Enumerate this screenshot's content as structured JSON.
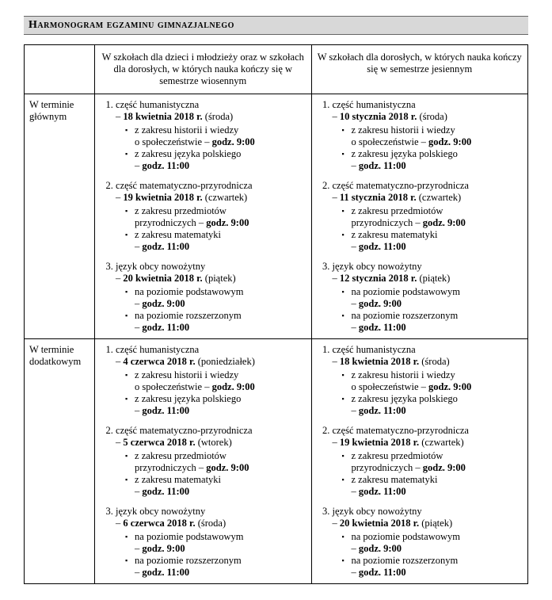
{
  "title": "Harmonogram egzaminu gimnazjalnego",
  "columns": {
    "a": "W szkołach dla dzieci i młodzieży oraz w szkołach dla dorosłych, w których nauka kończy się w semestrze wiosennym",
    "b": "W szkołach dla dorosłych, w których nauka kończy się w semestrze jesiennym"
  },
  "rows": [
    {
      "label": "W terminie głównym",
      "a": [
        {
          "title": "część humanistyczna",
          "date_pre": "– ",
          "date_bold": "18 kwietnia 2018 r.",
          "date_post": " (środa)",
          "bullets": [
            {
              "l1": "z zakresu historii i wiedzy",
              "l2_pre": "o społeczeństwie – ",
              "l2_bold": "godz. 9:00"
            },
            {
              "l1": "z zakresu języka polskiego",
              "l2_pre": "– ",
              "l2_bold": "godz. 11:00"
            }
          ]
        },
        {
          "title": "część matematyczno-przyrodnicza",
          "date_pre": "– ",
          "date_bold": "19 kwietnia 2018 r.",
          "date_post": " (czwartek)",
          "bullets": [
            {
              "l1": "z zakresu przedmiotów",
              "l2_pre": "przyrodniczych – ",
              "l2_bold": "godz. 9:00"
            },
            {
              "l1": "z zakresu matematyki",
              "l2_pre": "– ",
              "l2_bold": "godz. 11:00"
            }
          ]
        },
        {
          "title": "język obcy nowożytny",
          "date_pre": "– ",
          "date_bold": "20 kwietnia 2018 r.",
          "date_post": " (piątek)",
          "bullets": [
            {
              "l1": "na poziomie podstawowym",
              "l2_pre": "– ",
              "l2_bold": "godz. 9:00"
            },
            {
              "l1": "na poziomie rozszerzonym",
              "l2_pre": "– ",
              "l2_bold": "godz. 11:00"
            }
          ]
        }
      ],
      "b": [
        {
          "title": "część humanistyczna",
          "date_pre": "– ",
          "date_bold": "10 stycznia 2018 r.",
          "date_post": " (środa)",
          "bullets": [
            {
              "l1": "z zakresu historii i wiedzy",
              "l2_pre": "o społeczeństwie – ",
              "l2_bold": "godz. 9:00"
            },
            {
              "l1": "z zakresu języka polskiego",
              "l2_pre": "– ",
              "l2_bold": "godz. 11:00"
            }
          ]
        },
        {
          "title": "część matematyczno-przyrodnicza",
          "date_pre": "– ",
          "date_bold": "11 stycznia 2018 r.",
          "date_post": " (czwartek)",
          "bullets": [
            {
              "l1": "z zakresu przedmiotów",
              "l2_pre": "przyrodniczych – ",
              "l2_bold": "godz. 9:00"
            },
            {
              "l1": "z zakresu matematyki",
              "l2_pre": "– ",
              "l2_bold": "godz. 11:00"
            }
          ]
        },
        {
          "title": "język obcy nowożytny",
          "date_pre": "– ",
          "date_bold": "12 stycznia 2018 r.",
          "date_post": " (piątek)",
          "bullets": [
            {
              "l1": "na poziomie podstawowym",
              "l2_pre": "– ",
              "l2_bold": "godz. 9:00"
            },
            {
              "l1": "na poziomie rozszerzonym",
              "l2_pre": "– ",
              "l2_bold": "godz. 11:00"
            }
          ]
        }
      ]
    },
    {
      "label": "W terminie dodatkowym",
      "a": [
        {
          "title": "część humanistyczna",
          "date_pre": "– ",
          "date_bold": "4 czerwca 2018 r.",
          "date_post": " (poniedziałek)",
          "bullets": [
            {
              "l1": "z zakresu historii i wiedzy",
              "l2_pre": "o społeczeństwie – ",
              "l2_bold": "godz. 9:00"
            },
            {
              "l1": "z zakresu języka polskiego",
              "l2_pre": "– ",
              "l2_bold": "godz. 11:00"
            }
          ]
        },
        {
          "title": "część matematyczno-przyrodnicza",
          "date_pre": "– ",
          "date_bold": "5 czerwca 2018 r.",
          "date_post": " (wtorek)",
          "bullets": [
            {
              "l1": "z zakresu przedmiotów",
              "l2_pre": "przyrodniczych – ",
              "l2_bold": "godz. 9:00"
            },
            {
              "l1": "z zakresu matematyki",
              "l2_pre": "– ",
              "l2_bold": "godz. 11:00"
            }
          ]
        },
        {
          "title": "język obcy nowożytny",
          "date_pre": "– ",
          "date_bold": "6 czerwca 2018 r.",
          "date_post": " (środa)",
          "bullets": [
            {
              "l1": "na poziomie podstawowym",
              "l2_pre": "– ",
              "l2_bold": "godz. 9:00"
            },
            {
              "l1": "na poziomie rozszerzonym",
              "l2_pre": "– ",
              "l2_bold": "godz. 11:00"
            }
          ]
        }
      ],
      "b": [
        {
          "title": "część humanistyczna",
          "date_pre": "– ",
          "date_bold": "18 kwietnia 2018 r.",
          "date_post": " (środa)",
          "bullets": [
            {
              "l1": "z zakresu historii i wiedzy",
              "l2_pre": "o społeczeństwie – ",
              "l2_bold": "godz. 9:00"
            },
            {
              "l1": "z zakresu języka polskiego",
              "l2_pre": "– ",
              "l2_bold": "godz. 11:00"
            }
          ]
        },
        {
          "title": "część matematyczno-przyrodnicza",
          "date_pre": "– ",
          "date_bold": "19 kwietnia 2018 r.",
          "date_post": " (czwartek)",
          "bullets": [
            {
              "l1": "z zakresu przedmiotów",
              "l2_pre": "przyrodniczych – ",
              "l2_bold": "godz. 9:00"
            },
            {
              "l1": "z zakresu matematyki",
              "l2_pre": "– ",
              "l2_bold": "godz. 11:00"
            }
          ]
        },
        {
          "title": "język obcy nowożytny",
          "date_pre": "– ",
          "date_bold": "20 kwietnia 2018 r.",
          "date_post": " (piątek)",
          "bullets": [
            {
              "l1": "na poziomie podstawowym",
              "l2_pre": "– ",
              "l2_bold": "godz. 9:00"
            },
            {
              "l1": "na poziomie rozszerzonym",
              "l2_pre": "– ",
              "l2_bold": "godz. 11:00"
            }
          ]
        }
      ]
    }
  ]
}
